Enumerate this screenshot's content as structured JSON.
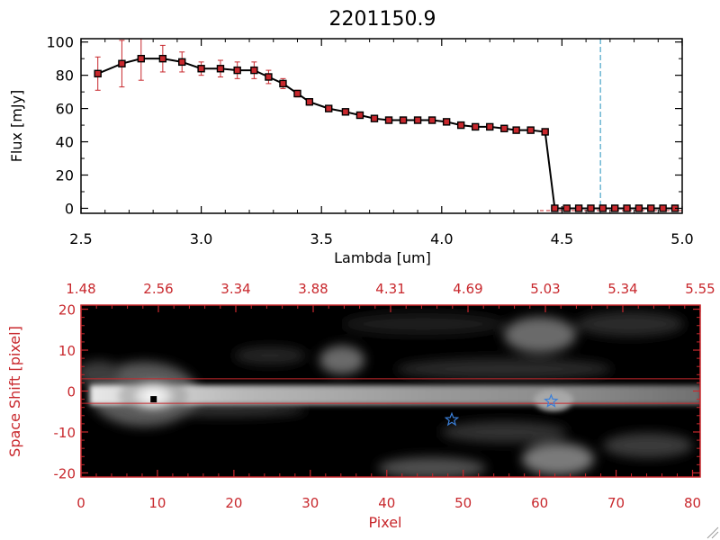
{
  "chart_data": [
    {
      "type": "line",
      "title": "2201150.9",
      "xlabel": "Lambda [um]",
      "ylabel": "Flux [mJy]",
      "xlim": [
        2.5,
        5.0
      ],
      "ylim": [
        -3,
        102
      ],
      "x_ticks": [
        "2.5",
        "3.0",
        "3.5",
        "4.0",
        "4.5",
        "5.0"
      ],
      "y_ticks": [
        "0",
        "20",
        "40",
        "60",
        "80",
        "100"
      ],
      "line_color": "#000000",
      "marker_color": "#c8282d",
      "errorbar_color": "#c8282d",
      "vertical_marker": {
        "x": 4.66,
        "color": "#4aa3c8",
        "style": "dashed"
      },
      "x": [
        2.57,
        2.67,
        2.75,
        2.84,
        2.92,
        3.0,
        3.08,
        3.15,
        3.22,
        3.28,
        3.34,
        3.4,
        3.45,
        3.53,
        3.6,
        3.66,
        3.72,
        3.78,
        3.84,
        3.9,
        3.96,
        4.02,
        4.08,
        4.14,
        4.2,
        4.26,
        4.31,
        4.37,
        4.43,
        4.47,
        4.52,
        4.57,
        4.62,
        4.67,
        4.72,
        4.77,
        4.82,
        4.87,
        4.92,
        4.97
      ],
      "y": [
        81,
        87,
        90,
        90,
        88,
        84,
        84,
        83,
        83,
        79,
        75,
        69,
        64,
        60,
        58,
        56,
        54,
        53,
        53,
        53,
        53,
        52,
        50,
        49,
        49,
        48,
        47,
        47,
        46,
        0,
        0,
        0,
        0,
        0,
        0,
        0,
        0,
        0,
        0,
        0
      ],
      "yerr": [
        10,
        14,
        13,
        8,
        6,
        4,
        5,
        5,
        5,
        4,
        3,
        2,
        2,
        1,
        1,
        1,
        1,
        1,
        1,
        1,
        1,
        1,
        1,
        1,
        1,
        1,
        1,
        1,
        1,
        0,
        0,
        0,
        0,
        0,
        0,
        0,
        0,
        0,
        0,
        0
      ]
    },
    {
      "type": "heatmap",
      "xlabel": "Pixel",
      "ylabel": "Space Shift [pixel]",
      "xlim": [
        0,
        81
      ],
      "ylim": [
        -21,
        21
      ],
      "x_ticks": [
        "0",
        "10",
        "20",
        "30",
        "40",
        "50",
        "60",
        "70",
        "80"
      ],
      "y_ticks": [
        "-20",
        "-10",
        "0",
        "10",
        "20"
      ],
      "top_ticks": [
        "1.48",
        "2.56",
        "3.34",
        "3.88",
        "4.31",
        "4.69",
        "5.03",
        "5.34",
        "5.55"
      ],
      "axis_color": "#c8282d",
      "colormap": "grayscale",
      "aperture_lines": {
        "y": [
          3,
          -3
        ],
        "color": "#c8282d"
      },
      "source_marker": {
        "x": 9.5,
        "y": -2,
        "shape": "square",
        "color": "#000000"
      },
      "star_markers": [
        {
          "x": 48.5,
          "y": -7,
          "color": "#3a7fd9"
        },
        {
          "x": 61.5,
          "y": -2.5,
          "color": "#3a7fd9"
        }
      ]
    }
  ]
}
